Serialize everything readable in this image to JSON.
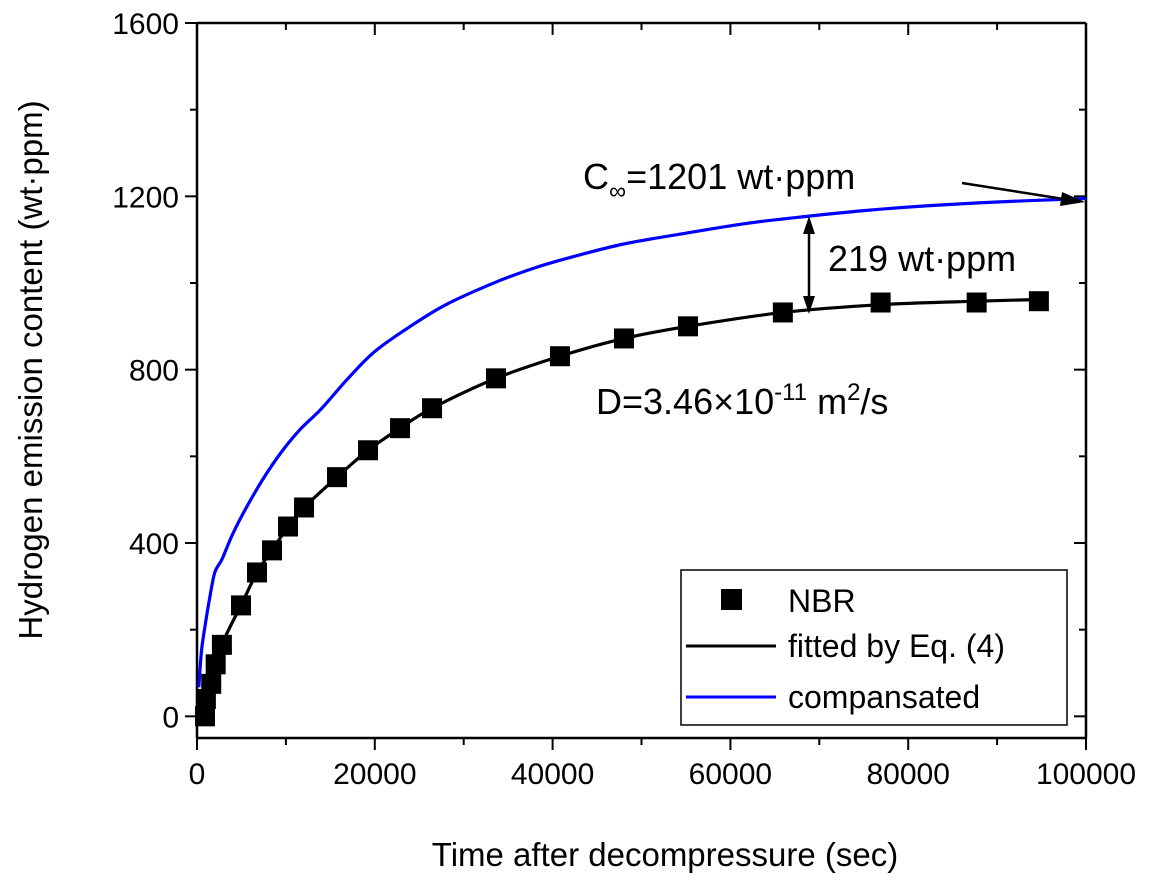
{
  "chart_data": {
    "type": "line",
    "title": "",
    "xlabel": "Time after decompressure (sec)",
    "ylabel": "Hydrogen emission content (wt·ppm)",
    "xlim": [
      0,
      100000
    ],
    "ylim": [
      -50,
      1600
    ],
    "xticks": [
      0,
      20000,
      40000,
      60000,
      80000,
      100000
    ],
    "xtick_labels": [
      "0",
      "20000",
      "40000",
      "60000",
      "80000",
      "100000"
    ],
    "xminor_step": 10000,
    "yticks": [
      0,
      400,
      800,
      1200,
      1600
    ],
    "ytick_labels": [
      "0",
      "400",
      "800",
      "1200",
      "1600"
    ],
    "yminor_step": 200,
    "grid": false,
    "legend_position": "bottom-right",
    "series": [
      {
        "name": "NBR",
        "kind": "scatter",
        "marker": "square",
        "color": "#000000",
        "x": [
          900,
          1000,
          1600,
          2100,
          2800,
          4950,
          6750,
          8440,
          10240,
          12040,
          15750,
          19240,
          22840,
          26440,
          33630,
          40830,
          48030,
          55230,
          65900,
          76900,
          87700,
          94700
        ],
        "y": [
          0,
          40,
          75,
          120,
          165,
          256,
          332,
          383,
          438,
          482,
          552,
          614,
          665,
          711,
          780,
          831,
          872,
          900,
          932,
          955,
          955,
          958
        ]
      },
      {
        "name": "fitted by Eq. (4)",
        "kind": "line",
        "color": "#000000",
        "x": [
          900,
          1600,
          2800,
          4950,
          6750,
          8440,
          10240,
          12040,
          15750,
          19240,
          22840,
          26440,
          33630,
          40830,
          48030,
          55230,
          65900,
          76900,
          87700,
          94700
        ],
        "y": [
          0,
          75,
          165,
          256,
          332,
          383,
          438,
          482,
          552,
          614,
          665,
          711,
          780,
          831,
          872,
          900,
          932,
          950,
          958,
          962
        ]
      },
      {
        "name": "compansated",
        "kind": "line",
        "color": "#0000ff",
        "x": [
          200,
          500,
          900,
          1400,
          2000,
          2800,
          4000,
          5500,
          7500,
          9500,
          11600,
          14000,
          17000,
          20000,
          24000,
          28000,
          33500,
          38000,
          42000,
          48000,
          55000,
          62000,
          68700,
          75000,
          82000,
          90000,
          100000
        ],
        "y": [
          67,
          150,
          208,
          270,
          332,
          362,
          420,
          480,
          550,
          610,
          662,
          710,
          780,
          842,
          900,
          950,
          1001,
          1035,
          1059,
          1090,
          1115,
          1138,
          1154,
          1167,
          1178,
          1187,
          1195
        ]
      }
    ],
    "annotations": [
      {
        "id": "c-inf",
        "prefix": "C",
        "subscript": "∞",
        "text": "=1201 wt·ppm",
        "points_to": [
          100000,
          1195
        ]
      },
      {
        "id": "gap",
        "text": "219 wt·ppm",
        "between": [
          [
            69000,
            1155
          ],
          [
            69000,
            935
          ]
        ]
      },
      {
        "id": "diffusivity",
        "prefix": "D=3.46×10",
        "sup1": "-11",
        "mid": " m",
        "sup2": "2",
        "suffix": "/s"
      }
    ]
  }
}
